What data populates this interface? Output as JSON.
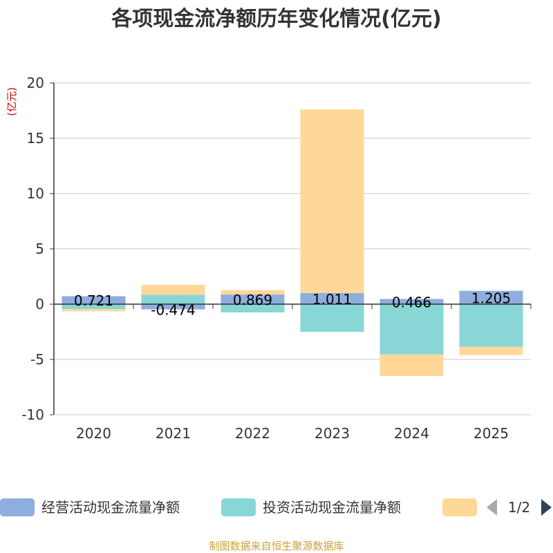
{
  "chart_data": {
    "type": "bar",
    "title": "各项现金流净额历年变化情况(亿元)",
    "ylabel": "(亿元)",
    "categories": [
      "2020",
      "2021",
      "2022",
      "2023",
      "2024",
      "2025"
    ],
    "ylim": [
      -10,
      20
    ],
    "yticks": [
      20,
      15,
      10,
      5,
      0,
      -5,
      -10
    ],
    "ytick_labels": [
      "20",
      "15",
      "10",
      "5",
      "0",
      "-5",
      "-10"
    ],
    "series": [
      {
        "name": "经营活动现金流量净额",
        "color": "#8eaedd",
        "values": [
          0.721,
          -0.474,
          0.869,
          1.011,
          0.466,
          1.205
        ]
      },
      {
        "name": "投资活动现金流量净额",
        "color": "#88d6d6",
        "values": [
          -0.45,
          0.85,
          -0.75,
          -2.5,
          -4.55,
          -3.85
        ]
      },
      {
        "name": "",
        "color": "#ffd898",
        "values": [
          -0.2,
          0.9,
          0.4,
          16.6,
          -1.95,
          -0.75
        ]
      }
    ],
    "data_labels": [
      "0.721",
      "-0.474",
      "0.869",
      "1.011",
      "0.466",
      "1.205"
    ],
    "legend": {
      "page": "1/2",
      "position": "bottom"
    },
    "source": "制图数据来自恒生聚源数据库"
  }
}
